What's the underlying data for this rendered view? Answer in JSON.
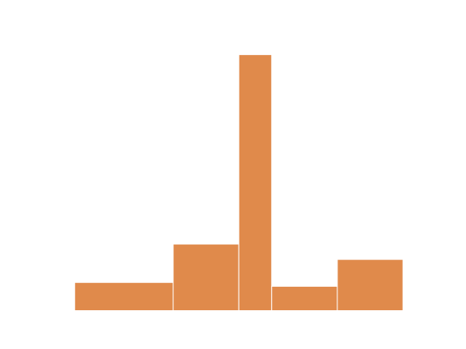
{
  "chart_data": {
    "type": "histogram",
    "bins": [
      0,
      3,
      5,
      6,
      8,
      10
    ],
    "values": [
      1.1,
      2.6,
      10,
      0.95,
      2.0
    ],
    "color": "#e08a4b",
    "edgecolor": "#ffffff",
    "xlim": [
      -0.5,
      10.5
    ],
    "ylim": [
      0,
      10.5
    ]
  }
}
